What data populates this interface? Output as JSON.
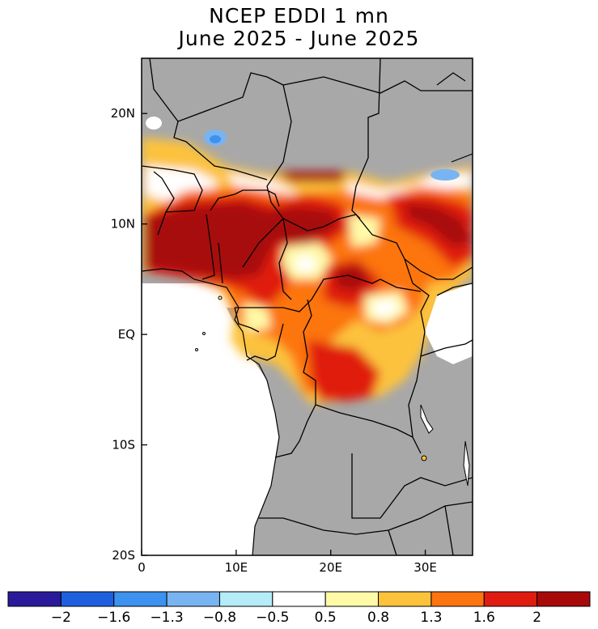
{
  "title": {
    "line1": "NCEP EDDI 1 mn",
    "line2": "June 2025 - June 2025"
  },
  "axes": {
    "lon_ticks": [
      {
        "value": 0,
        "label": "0"
      },
      {
        "value": 10,
        "label": "10E"
      },
      {
        "value": 20,
        "label": "20E"
      },
      {
        "value": 30,
        "label": "30E"
      }
    ],
    "lat_ticks": [
      {
        "value": 20,
        "label": "20N"
      },
      {
        "value": 10,
        "label": "10N"
      },
      {
        "value": 0,
        "label": "EQ"
      },
      {
        "value": -10,
        "label": "10S"
      },
      {
        "value": -20,
        "label": "20S"
      }
    ],
    "lon_range": [
      0,
      35
    ],
    "lat_range": [
      -20,
      25
    ]
  },
  "colorbar": {
    "colors": [
      "#2a1a9a",
      "#1e5fe0",
      "#3c92ee",
      "#78b4f2",
      "#b4ecf8",
      "#ffffff",
      "#fffaa8",
      "#fcc23c",
      "#fc7410",
      "#e01c10",
      "#a80a0a"
    ],
    "labels": [
      "-2",
      "-1.6",
      "-1.3",
      "-0.8",
      "-0.5",
      "0.5",
      "0.8",
      "1.3",
      "1.6",
      "2"
    ]
  },
  "land_color": "#a8a8a8",
  "ocean_color": "#ffffff"
}
